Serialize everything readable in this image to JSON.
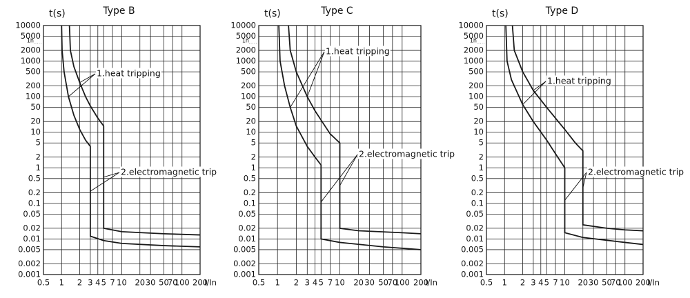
{
  "chart_data": [
    {
      "type": "line",
      "title": "Type B",
      "ylabel": "t(s)",
      "xlabel": "I/In",
      "xscale": "log",
      "yscale": "log",
      "grid": true,
      "xlim": [
        0.5,
        200
      ],
      "ylim": [
        0.001,
        10000
      ],
      "xticks": [
        0.5,
        1,
        2,
        3,
        4,
        5,
        7,
        10,
        20,
        30,
        50,
        70,
        100,
        200
      ],
      "yticks": [
        0.001,
        0.002,
        0.005,
        0.01,
        0.02,
        0.05,
        0.1,
        0.2,
        0.5,
        1,
        2,
        5,
        10,
        20,
        50,
        100,
        200,
        500,
        1000,
        2000,
        {
          "value": 3600,
          "label": "1h"
        },
        5000,
        10000
      ],
      "series": [
        {
          "color": "#1a1a1a",
          "x": [
            1,
            1.02,
            1.1,
            1.3,
            1.6,
            2,
            2.5,
            3,
            3,
            5,
            10,
            50,
            200
          ],
          "values": [
            10000,
            2000,
            500,
            100,
            30,
            12,
            6,
            4,
            0.012,
            0.009,
            0.0075,
            0.0065,
            0.006
          ]
        },
        {
          "color": "#1a1a1a",
          "x": [
            1.35,
            1.4,
            1.6,
            2,
            2.5,
            3,
            4,
            5,
            5,
            10,
            50,
            200
          ],
          "values": [
            10000,
            2000,
            700,
            250,
            100,
            55,
            25,
            15,
            0.02,
            0.016,
            0.014,
            0.013
          ]
        }
      ],
      "annotations": [
        {
          "text": "1.heat tripping"
        },
        {
          "text": "2.electromagnetic trip"
        }
      ]
    },
    {
      "type": "line",
      "title": "Type C",
      "ylabel": "t(s)",
      "xlabel": "I/In",
      "xscale": "log",
      "yscale": "log",
      "grid": true,
      "xlim": [
        0.5,
        200
      ],
      "ylim": [
        0.001,
        10000
      ],
      "xticks": [
        0.5,
        1,
        2,
        3,
        4,
        5,
        7,
        10,
        20,
        30,
        50,
        70,
        100,
        200
      ],
      "yticks": [
        0.001,
        0.002,
        0.005,
        0.01,
        0.02,
        0.05,
        0.1,
        0.2,
        0.5,
        1,
        2,
        5,
        10,
        20,
        50,
        100,
        200,
        500,
        1000,
        2000,
        {
          "value": 3600,
          "label": "1h"
        },
        5000,
        10000
      ],
      "series": [
        {
          "color": "#1a1a1a",
          "x": [
            1.05,
            1.1,
            1.3,
            1.6,
            2,
            3,
            4,
            5,
            5,
            10,
            50,
            200
          ],
          "values": [
            10000,
            1000,
            200,
            50,
            15,
            4,
            2,
            1.2,
            0.01,
            0.008,
            0.006,
            0.005
          ]
        },
        {
          "color": "#1a1a1a",
          "x": [
            1.5,
            1.6,
            2,
            3,
            4,
            5,
            7,
            10,
            10,
            20,
            100,
            200
          ],
          "values": [
            10000,
            2000,
            500,
            100,
            40,
            22,
            9,
            5,
            0.02,
            0.017,
            0.015,
            0.014
          ]
        }
      ],
      "annotations": [
        {
          "text": "1.heat tripping"
        },
        {
          "text": "2.electromagnetic trip"
        }
      ]
    },
    {
      "type": "line",
      "title": "Type D",
      "ylabel": "t(s)",
      "xlabel": "I/In",
      "xscale": "log",
      "yscale": "log",
      "grid": true,
      "xlim": [
        0.5,
        200
      ],
      "ylim": [
        0.001,
        10000
      ],
      "xticks": [
        0.5,
        1,
        2,
        3,
        4,
        5,
        7,
        10,
        20,
        30,
        50,
        70,
        100,
        200
      ],
      "yticks": [
        0.001,
        0.002,
        0.005,
        0.01,
        0.02,
        0.05,
        0.1,
        0.2,
        0.5,
        1,
        2,
        5,
        10,
        20,
        50,
        100,
        200,
        500,
        1000,
        2000,
        {
          "value": 3600,
          "label": "1h"
        },
        5000,
        10000
      ],
      "series": [
        {
          "color": "#1a1a1a",
          "x": [
            1.05,
            1.1,
            1.3,
            2,
            3,
            5,
            7,
            10,
            10,
            20,
            100,
            200
          ],
          "values": [
            10000,
            1000,
            300,
            60,
            20,
            6,
            2.5,
            1,
            0.015,
            0.011,
            0.008,
            0.007
          ]
        },
        {
          "color": "#1a1a1a",
          "x": [
            1.35,
            1.45,
            2,
            3,
            5,
            10,
            15,
            20,
            20,
            50,
            100,
            200
          ],
          "values": [
            10000,
            2000,
            500,
            150,
            50,
            12,
            5,
            3,
            0.025,
            0.02,
            0.018,
            0.017
          ]
        }
      ],
      "annotations": [
        {
          "text": "1.heat tripping"
        },
        {
          "text": "2.electromagnetic trip"
        }
      ]
    }
  ]
}
